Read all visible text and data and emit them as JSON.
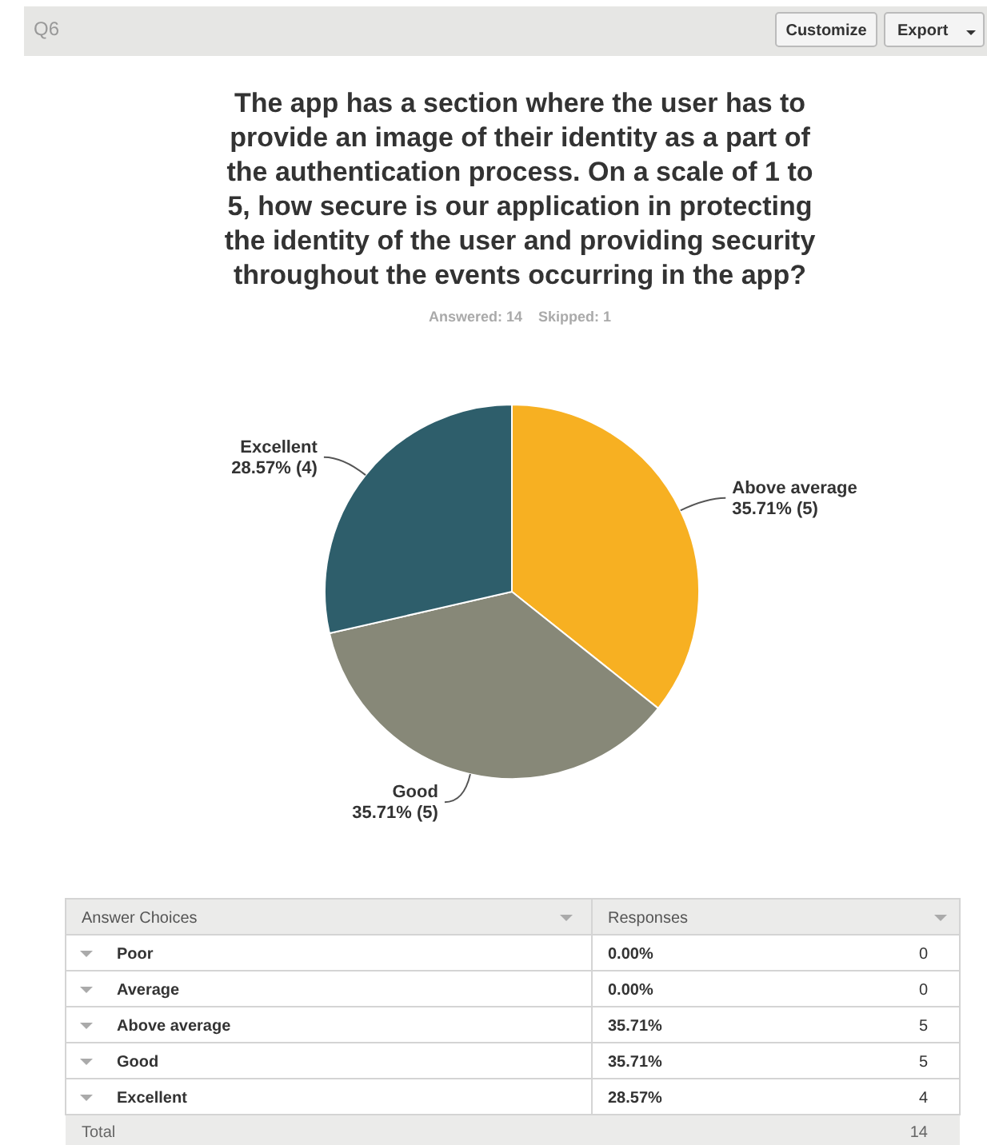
{
  "chart_data": [
    {
      "type": "pie",
      "title": "The app has a section where the user has to provide an image of their identity as a part of the authentication process. On a scale of 1 to 5, how secure is our application in protecting the identity of the user and providing security throughout the events occurring in the app?",
      "subtitle": "Answered: 14    Skipped: 1",
      "categories": [
        "Above average",
        "Good",
        "Excellent"
      ],
      "values": [
        35.71,
        35.71,
        28.57
      ],
      "colors": [
        "#f7b022",
        "#878878",
        "#2e5e6b"
      ],
      "value_labels": [
        "35.71% (5)",
        "35.71% (5)",
        "28.57% (4)"
      ],
      "annotations": [
        "Q6",
        "Customize",
        "Export"
      ]
    },
    {
      "type": "other",
      "annotations": [
        "Answer Choices",
        "Responses",
        "Poor",
        "0.00%",
        "0",
        "Average",
        "0.00%",
        "0",
        "Above average",
        "35.71%",
        "5",
        "Good",
        "35.71%",
        "5",
        "Excellent",
        "28.57%",
        "4",
        "Total",
        "14"
      ]
    }
  ]
}
